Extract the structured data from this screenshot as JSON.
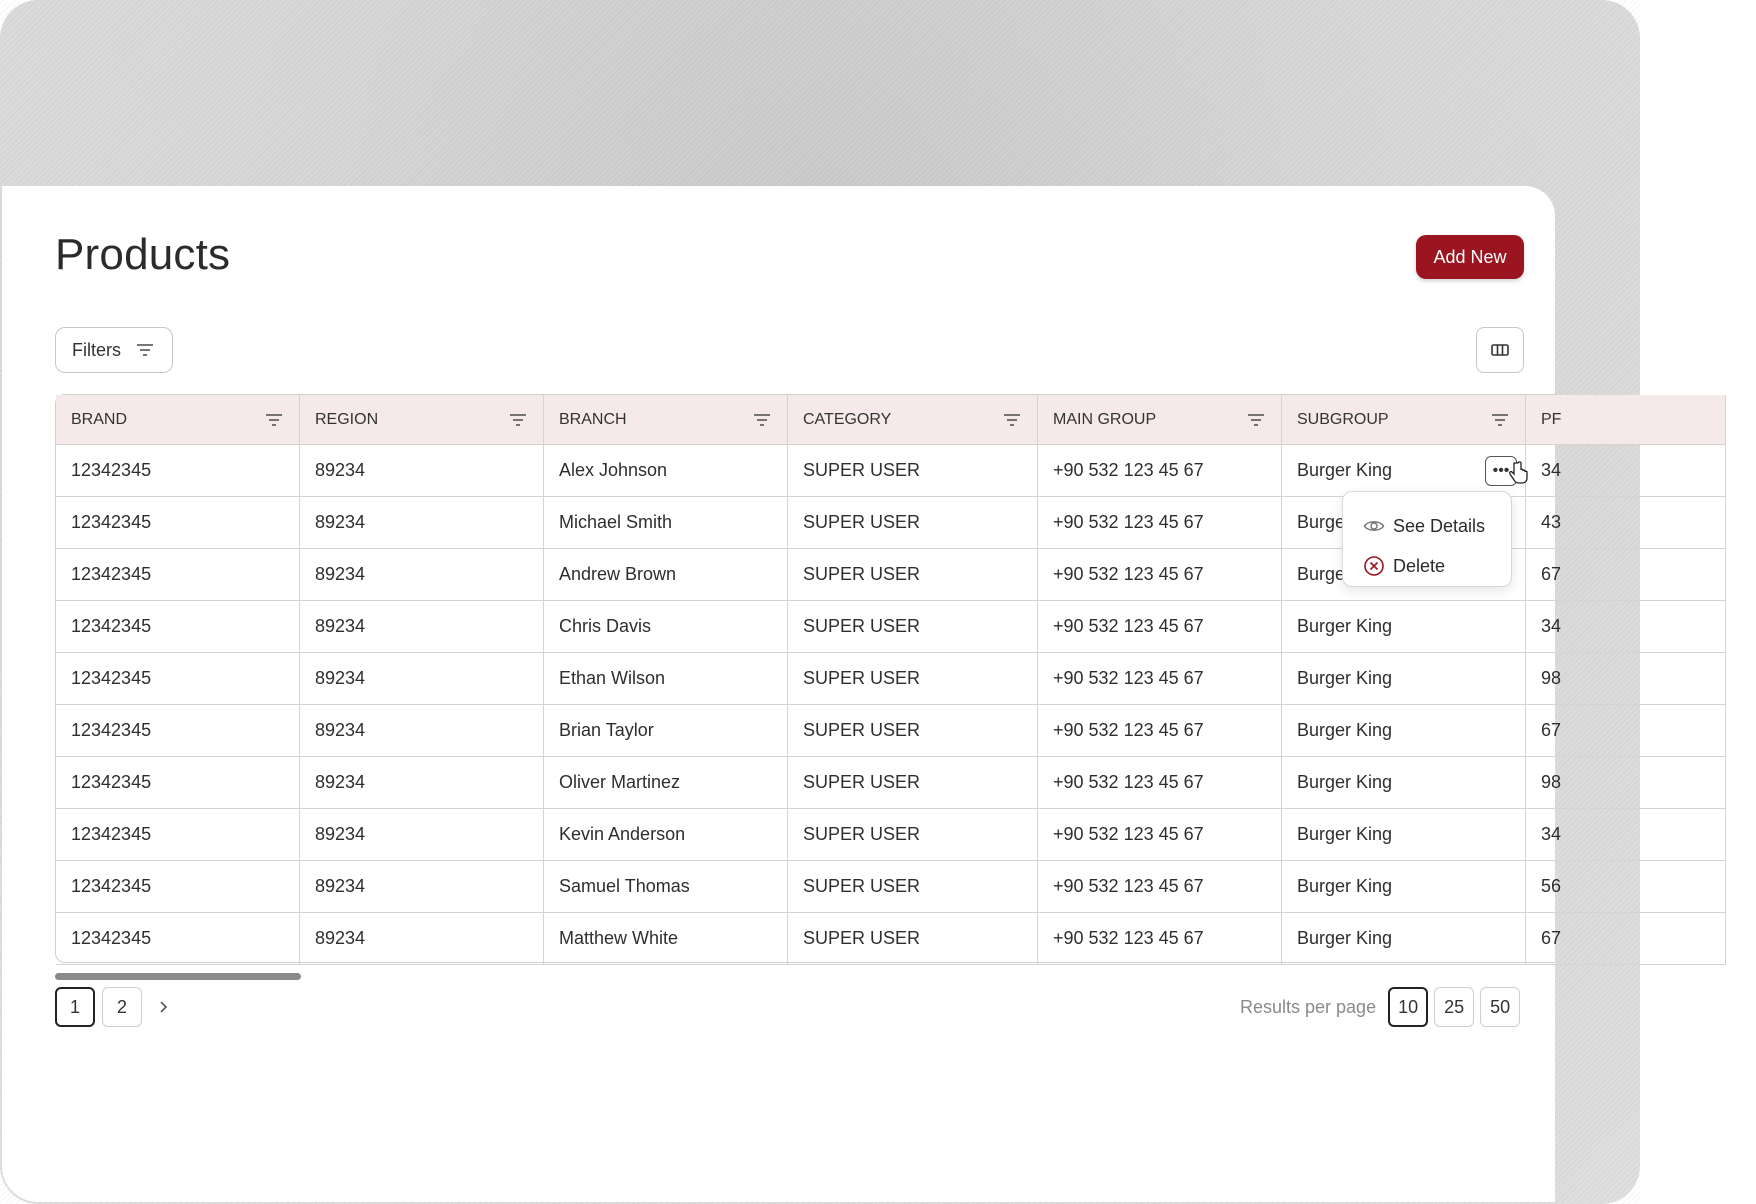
{
  "page": {
    "title": "Products",
    "add_button_label": "Add New"
  },
  "toolbar": {
    "filters_label": "Filters"
  },
  "table": {
    "headers": [
      "BRAND",
      "REGION",
      "BRANCH",
      "CATEGORY",
      "MAIN GROUP",
      "SUBGROUP",
      "PF"
    ],
    "rows": [
      [
        "12342345",
        "89234",
        "Alex Johnson",
        "SUPER USER",
        "+90 532 123 45 67",
        "Burger King",
        "34"
      ],
      [
        "12342345",
        "89234",
        "Michael Smith",
        "SUPER USER",
        "+90 532 123 45 67",
        "Burge",
        "43"
      ],
      [
        "12342345",
        "89234",
        "Andrew Brown",
        "SUPER USER",
        "+90 532 123 45 67",
        "Burge",
        "67"
      ],
      [
        "12342345",
        "89234",
        "Chris Davis",
        "SUPER USER",
        "+90 532 123 45 67",
        "Burger King",
        "34"
      ],
      [
        "12342345",
        "89234",
        "Ethan Wilson",
        "SUPER USER",
        "+90 532 123 45 67",
        "Burger King",
        "98"
      ],
      [
        "12342345",
        "89234",
        "Brian Taylor",
        "SUPER USER",
        "+90 532 123 45 67",
        "Burger King",
        "67"
      ],
      [
        "12342345",
        "89234",
        "Oliver Martinez",
        "SUPER USER",
        "+90 532 123 45 67",
        "Burger King",
        "98"
      ],
      [
        "12342345",
        "89234",
        "Kevin Anderson",
        "SUPER USER",
        "+90 532 123 45 67",
        "Burger King",
        "34"
      ],
      [
        "12342345",
        "89234",
        "Samuel Thomas",
        "SUPER USER",
        "+90 532 123 45 67",
        "Burger King",
        "56"
      ],
      [
        "12342345",
        "89234",
        "Matthew White",
        "SUPER USER",
        "+90 532 123 45 67",
        "Burger King",
        "67"
      ]
    ]
  },
  "row_menu": {
    "trigger": "•••",
    "items": [
      "See Details",
      "Delete"
    ]
  },
  "pagination": {
    "pages": [
      "1",
      "2"
    ],
    "current": "1"
  },
  "results_per_page": {
    "label": "Results per page",
    "options": [
      "10",
      "25",
      "50"
    ],
    "selected": "10"
  },
  "colors": {
    "accent": "#9b1520",
    "header_bg": "#f5e9e9"
  }
}
